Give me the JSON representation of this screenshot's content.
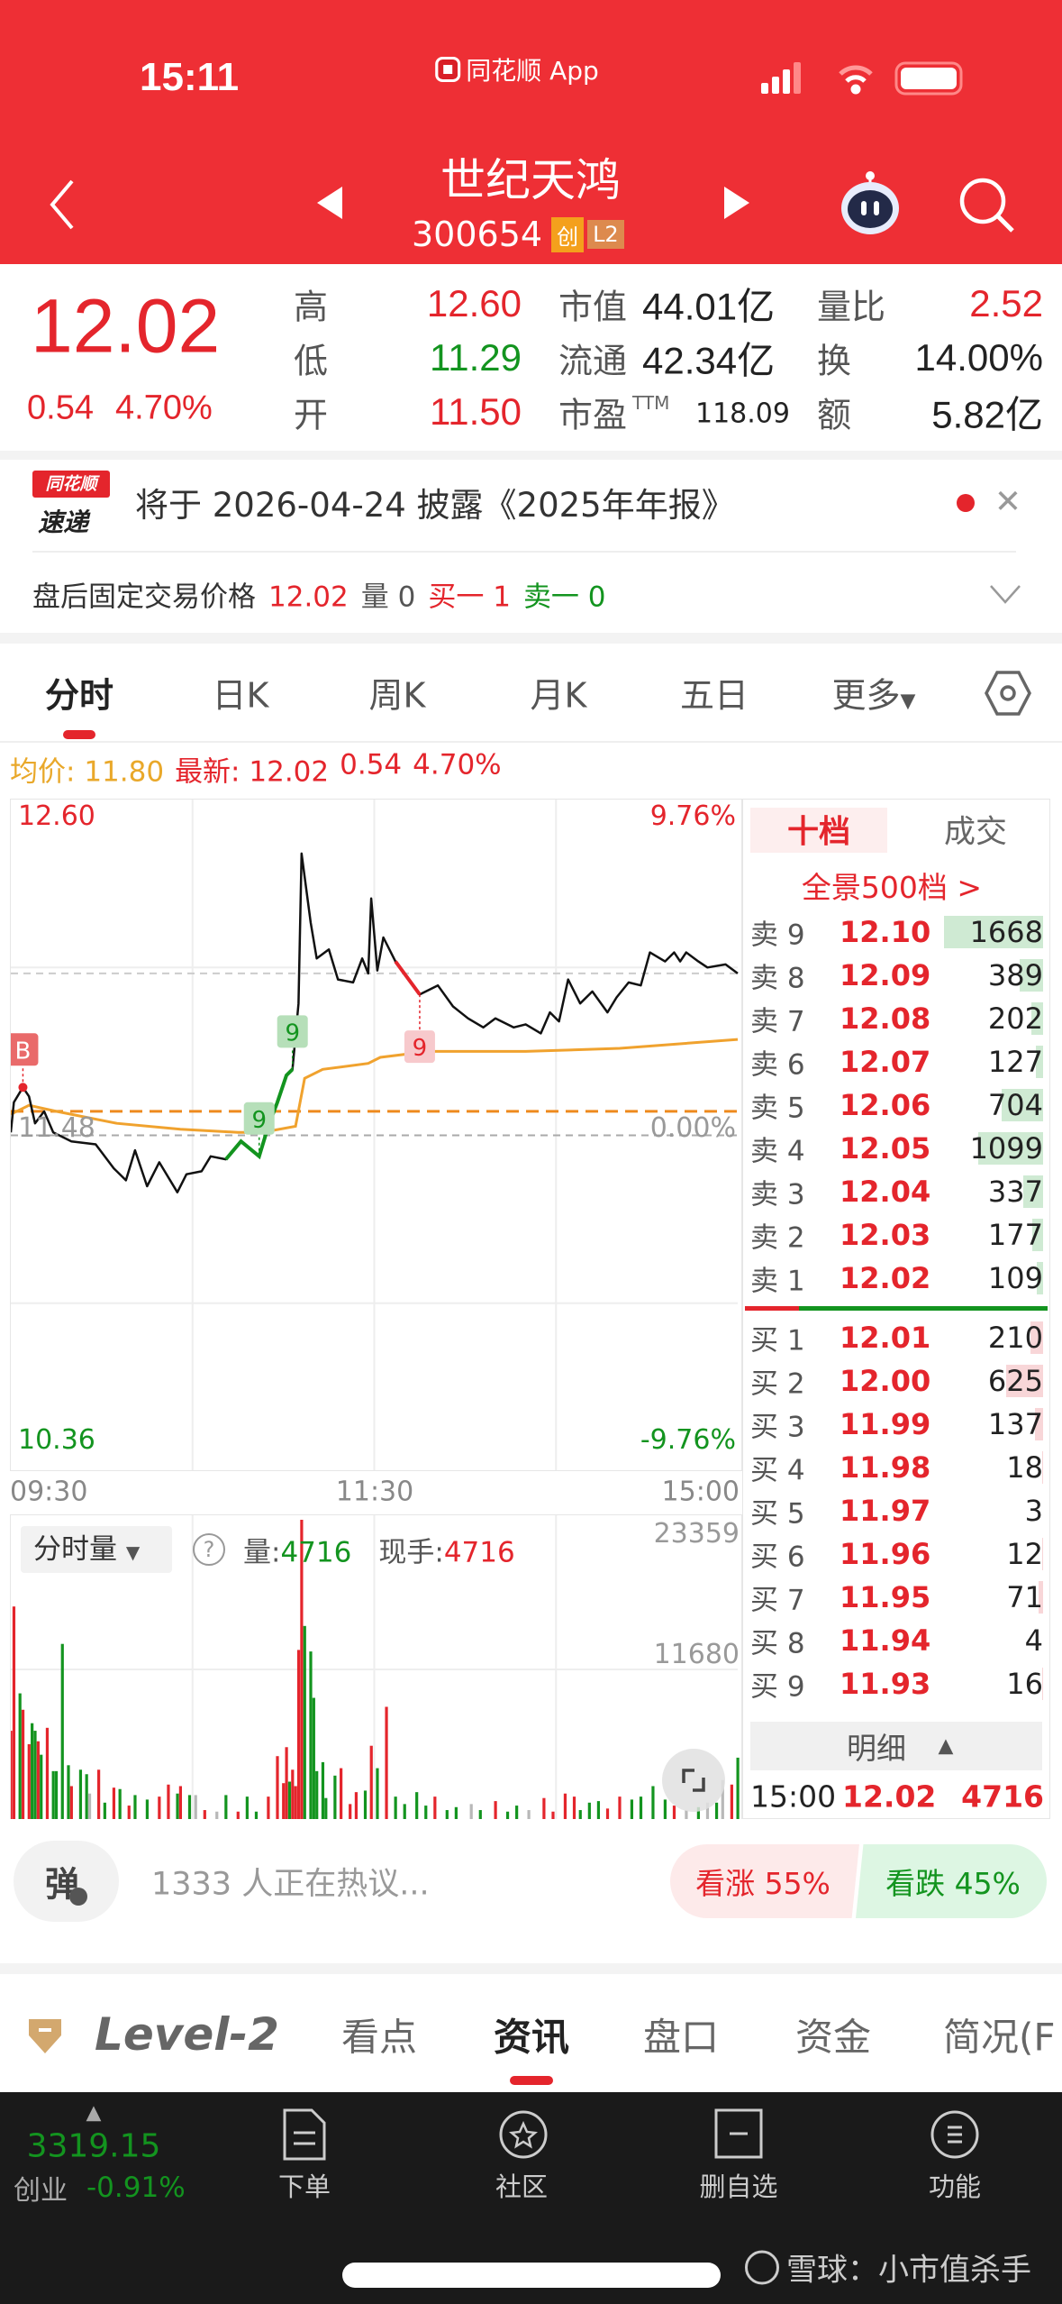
{
  "status_bar": {
    "time": "15:11",
    "app_label": "同花顺 App",
    "icons": [
      "signal-icon",
      "wifi-icon",
      "battery-icon"
    ]
  },
  "header": {
    "title": "世纪天鸿",
    "code": "300654",
    "badges": [
      "创",
      "L2"
    ],
    "icons": [
      "back-icon",
      "prev-stock-icon",
      "next-stock-icon",
      "robot-assistant-icon",
      "search-icon"
    ]
  },
  "quote": {
    "price": "12.02",
    "change": "0.54",
    "change_pct": "4.70%",
    "stats": [
      {
        "label": "高",
        "value": "12.60",
        "color": "red"
      },
      {
        "label": "低",
        "value": "11.29",
        "color": "green"
      },
      {
        "label": "开",
        "value": "11.50",
        "color": "red"
      }
    ],
    "stats2": [
      {
        "label": "市值",
        "value": "44.01亿"
      },
      {
        "label": "流通",
        "value": "42.34亿"
      },
      {
        "label": "市盈",
        "sup": "TTM",
        "value": "118.09"
      }
    ],
    "stats3": [
      {
        "label": "量比",
        "value": "2.52",
        "color": "red"
      },
      {
        "label": "换",
        "value": "14.00%",
        "color": "dark"
      },
      {
        "label": "额",
        "value": "5.82亿",
        "color": "dark"
      }
    ]
  },
  "notice": {
    "logo_top": "同花顺",
    "logo_bottom": "速递",
    "text": "将于 2026-04-24 披露《2025年年报》"
  },
  "after_hours": {
    "label": "盘后固定交易价格",
    "price": "12.02",
    "vol_label": "量",
    "vol": "0",
    "buy_label": "买一",
    "buy": "1",
    "sell_label": "卖一",
    "sell": "0"
  },
  "chart_tabs": {
    "items": [
      "分时",
      "日K",
      "周K",
      "月K",
      "五日",
      "更多"
    ],
    "active": 0
  },
  "avg_row": {
    "avg_label": "均价:",
    "avg": "11.80",
    "last_label": "最新:",
    "last": "12.02",
    "change": "0.54",
    "pct": "4.70%"
  },
  "colors": {
    "up": "#e4252c",
    "down": "#13941f",
    "flat": "#b8b8b8",
    "avg_line": "#f0a22e",
    "brand": "#ee2f35"
  },
  "chart_data": [
    {
      "type": "line",
      "y_tick_labels": {
        "top": "12.60",
        "mid": "11.48",
        "bottom": "10.36",
        "top_pct": "9.76%",
        "mid_pct": "0.00%",
        "bottom_pct": "-9.76%"
      },
      "ylim": [
        10.36,
        12.6
      ],
      "x_tick_labels": [
        "09:30",
        "11:30",
        "15:00"
      ],
      "prev_close": 11.48,
      "reference_line": 11.56,
      "current_price": 12.02,
      "series": [
        {
          "role": "price",
          "points": [
            [
              "09:30",
              11.49
            ],
            [
              "09:31",
              11.59
            ],
            [
              "09:34",
              11.64
            ],
            [
              "09:36",
              11.61
            ],
            [
              "09:38",
              11.52
            ],
            [
              "09:41",
              11.56
            ],
            [
              "09:44",
              11.49
            ],
            [
              "09:50",
              11.46
            ],
            [
              "09:58",
              11.45
            ],
            [
              "10:04",
              11.37
            ],
            [
              "10:08",
              11.33
            ],
            [
              "10:11",
              11.43
            ],
            [
              "10:15",
              11.31
            ],
            [
              "10:19",
              11.39
            ],
            [
              "10:25",
              11.29
            ],
            [
              "10:28",
              11.35
            ],
            [
              "10:33",
              11.36
            ],
            [
              "10:36",
              11.41
            ],
            [
              "10:41",
              11.4
            ],
            [
              "10:46",
              11.46
            ],
            [
              "10:52",
              11.41
            ],
            [
              "10:55",
              11.51
            ],
            [
              "10:58",
              11.59
            ],
            [
              "11:01",
              11.68
            ],
            [
              "11:03",
              11.7
            ],
            [
              "11:05",
              11.92
            ],
            [
              "11:06",
              12.42
            ],
            [
              "11:09",
              12.19
            ],
            [
              "11:11",
              12.07
            ],
            [
              "11:15",
              12.1
            ],
            [
              "11:18",
              12.0
            ],
            [
              "11:23",
              11.99
            ],
            [
              "11:26",
              12.07
            ],
            [
              "11:28",
              12.02
            ],
            [
              "11:29",
              12.27
            ],
            [
              "13:01",
              12.03
            ],
            [
              "13:03",
              12.14
            ],
            [
              "13:07",
              12.06
            ],
            [
              "13:15",
              11.95
            ],
            [
              "13:21",
              11.98
            ],
            [
              "13:26",
              11.91
            ],
            [
              "13:31",
              11.87
            ],
            [
              "13:36",
              11.84
            ],
            [
              "13:40",
              11.87
            ],
            [
              "13:46",
              11.84
            ],
            [
              "13:50",
              11.85
            ],
            [
              "13:55",
              11.82
            ],
            [
              "13:58",
              11.89
            ],
            [
              "14:01",
              11.86
            ],
            [
              "14:04",
              12.0
            ],
            [
              "14:08",
              11.92
            ],
            [
              "14:12",
              11.96
            ],
            [
              "14:17",
              11.89
            ],
            [
              "14:20",
              11.94
            ],
            [
              "14:24",
              11.99
            ],
            [
              "14:28",
              11.98
            ],
            [
              "14:31",
              12.09
            ],
            [
              "14:36",
              12.06
            ],
            [
              "14:39",
              12.09
            ],
            [
              "14:41",
              12.06
            ],
            [
              "14:43",
              12.09
            ],
            [
              "14:47",
              12.06
            ],
            [
              "14:50",
              12.04
            ],
            [
              "14:56",
              12.05
            ],
            [
              "15:00",
              12.02
            ]
          ]
        },
        {
          "role": "average",
          "points": [
            [
              "09:30",
              11.55
            ],
            [
              "09:36",
              11.58
            ],
            [
              "09:45",
              11.56
            ],
            [
              "10:05",
              11.52
            ],
            [
              "10:26",
              11.5
            ],
            [
              "10:45",
              11.49
            ],
            [
              "10:53",
              11.49
            ],
            [
              "11:04",
              11.51
            ],
            [
              "11:07",
              11.67
            ],
            [
              "11:13",
              11.7
            ],
            [
              "11:28",
              11.72
            ],
            [
              "13:02",
              11.74
            ],
            [
              "13:18",
              11.76
            ],
            [
              "13:50",
              11.76
            ],
            [
              "14:21",
              11.77
            ],
            [
              "15:00",
              11.8
            ]
          ]
        }
      ],
      "highlights": [
        {
          "from": "10:41",
          "to": "11:03",
          "color": "down"
        },
        {
          "from": "13:07",
          "to": "13:15",
          "color": "up"
        }
      ],
      "markers": [
        {
          "time": "09:34",
          "label": "B",
          "color": "up"
        },
        {
          "time": "10:52",
          "label": "9",
          "color": "down"
        },
        {
          "time": "11:03",
          "label": "9",
          "color": "down"
        },
        {
          "time": "13:15",
          "label": "9",
          "color": "up"
        }
      ]
    },
    {
      "type": "bar",
      "selector_label": "分时量",
      "vol_label": "量:",
      "vol": "4716",
      "hand_label": "现手:",
      "hand": "4716",
      "y_tick_labels": [
        "23359",
        "11680"
      ],
      "ylim": [
        0,
        23359
      ],
      "bars": [
        [
          "09:30",
          6890,
          "r"
        ],
        [
          "09:31",
          16590,
          "r"
        ],
        [
          "09:33",
          9810,
          "g"
        ],
        [
          "09:34",
          8530,
          "r"
        ],
        [
          "09:36",
          5840,
          "r"
        ],
        [
          "09:37",
          7480,
          "g"
        ],
        [
          "09:38",
          6890,
          "g"
        ],
        [
          "09:39",
          6070,
          "r"
        ],
        [
          "09:40",
          5020,
          "g"
        ],
        [
          "09:42",
          7120,
          "r"
        ],
        [
          "09:44",
          3740,
          "g"
        ],
        [
          "09:45",
          3740,
          "g"
        ],
        [
          "09:47",
          13670,
          "g"
        ],
        [
          "09:49",
          4200,
          "g"
        ],
        [
          "09:50",
          2570,
          "r"
        ],
        [
          "09:53",
          3850,
          "g"
        ],
        [
          "09:55",
          3500,
          "g"
        ],
        [
          "09:56",
          1990,
          "n"
        ],
        [
          "09:59",
          3850,
          "r"
        ],
        [
          "10:01",
          1280,
          "g"
        ],
        [
          "10:04",
          2450,
          "r"
        ],
        [
          "10:06",
          2340,
          "g"
        ],
        [
          "10:09",
          1050,
          "r"
        ],
        [
          "10:11",
          1870,
          "g"
        ],
        [
          "10:15",
          1520,
          "g"
        ],
        [
          "10:19",
          1750,
          "r"
        ],
        [
          "10:22",
          2690,
          "r"
        ],
        [
          "10:25",
          1990,
          "g"
        ],
        [
          "10:26",
          2570,
          "r"
        ],
        [
          "10:29",
          1870,
          "g"
        ],
        [
          "10:31",
          1870,
          "n"
        ],
        [
          "10:34",
          700,
          "r"
        ],
        [
          "10:38",
          580,
          "n"
        ],
        [
          "10:41",
          1870,
          "g"
        ],
        [
          "10:45",
          580,
          "r"
        ],
        [
          "10:48",
          1750,
          "g"
        ],
        [
          "10:51",
          580,
          "g"
        ],
        [
          "10:55",
          1750,
          "r"
        ],
        [
          "10:58",
          4910,
          "r"
        ],
        [
          "11:00",
          2800,
          "r"
        ],
        [
          "11:01",
          5610,
          "r"
        ],
        [
          "11:02",
          2920,
          "g"
        ],
        [
          "11:03",
          3850,
          "r"
        ],
        [
          "11:04",
          2570,
          "r"
        ],
        [
          "11:05",
          13200,
          "r"
        ],
        [
          "11:06",
          23359,
          "r"
        ],
        [
          "11:07",
          15070,
          "g"
        ],
        [
          "11:09",
          13080,
          "g"
        ],
        [
          "11:10",
          9460,
          "g"
        ],
        [
          "11:11",
          3740,
          "g"
        ],
        [
          "11:13",
          4440,
          "g"
        ],
        [
          "11:14",
          1640,
          "g"
        ],
        [
          "11:17",
          3390,
          "g"
        ],
        [
          "11:19",
          3970,
          "r"
        ],
        [
          "11:22",
          1170,
          "r"
        ],
        [
          "11:24",
          2100,
          "r"
        ],
        [
          "11:27",
          2220,
          "g"
        ],
        [
          "11:29",
          5720,
          "r"
        ],
        [
          "13:01",
          3970,
          "g"
        ],
        [
          "13:04",
          8760,
          "r"
        ],
        [
          "13:07",
          1750,
          "g"
        ],
        [
          "13:10",
          1170,
          "g"
        ],
        [
          "13:14",
          2100,
          "g"
        ],
        [
          "13:17",
          1050,
          "g"
        ],
        [
          "13:20",
          1750,
          "r"
        ],
        [
          "13:24",
          700,
          "g"
        ],
        [
          "13:27",
          930,
          "g"
        ],
        [
          "13:32",
          1170,
          "n"
        ],
        [
          "13:35",
          700,
          "g"
        ],
        [
          "13:40",
          1400,
          "r"
        ],
        [
          "13:44",
          580,
          "g"
        ],
        [
          "13:47",
          1050,
          "g"
        ],
        [
          "13:51",
          700,
          "n"
        ],
        [
          "13:56",
          1640,
          "r"
        ],
        [
          "13:59",
          580,
          "r"
        ],
        [
          "14:03",
          1990,
          "r"
        ],
        [
          "14:06",
          1750,
          "r"
        ],
        [
          "14:08",
          700,
          "g"
        ],
        [
          "14:11",
          1280,
          "g"
        ],
        [
          "14:14",
          1400,
          "g"
        ],
        [
          "14:17",
          820,
          "r"
        ],
        [
          "14:21",
          1750,
          "r"
        ],
        [
          "14:25",
          1520,
          "g"
        ],
        [
          "14:28",
          1750,
          "g"
        ],
        [
          "14:32",
          2570,
          "g"
        ],
        [
          "14:36",
          1520,
          "g"
        ],
        [
          "14:39",
          1050,
          "r"
        ],
        [
          "14:43",
          700,
          "n"
        ],
        [
          "14:47",
          930,
          "g"
        ],
        [
          "14:50",
          1280,
          "n"
        ],
        [
          "14:53",
          1280,
          "g"
        ],
        [
          "14:55",
          3040,
          "n"
        ],
        [
          "14:58",
          2690,
          "r"
        ],
        [
          "15:00",
          4790,
          "g"
        ]
      ]
    }
  ],
  "order_book": {
    "tabs": [
      "十档",
      "成交"
    ],
    "active_tab": 0,
    "panorama_link": "全景500档 >",
    "asks": [
      {
        "label": "卖 9",
        "price": "12.10",
        "qty": 1668
      },
      {
        "label": "卖 8",
        "price": "12.09",
        "qty": 389
      },
      {
        "label": "卖 7",
        "price": "12.08",
        "qty": 202
      },
      {
        "label": "卖 6",
        "price": "12.07",
        "qty": 127
      },
      {
        "label": "卖 5",
        "price": "12.06",
        "qty": 704
      },
      {
        "label": "卖 4",
        "price": "12.05",
        "qty": 1099
      },
      {
        "label": "卖 3",
        "price": "12.04",
        "qty": 337
      },
      {
        "label": "卖 2",
        "price": "12.03",
        "qty": 177
      },
      {
        "label": "卖 1",
        "price": "12.02",
        "qty": 109
      }
    ],
    "bids": [
      {
        "label": "买 1",
        "price": "12.01",
        "qty": 210
      },
      {
        "label": "买 2",
        "price": "12.00",
        "qty": 625
      },
      {
        "label": "买 3",
        "price": "11.99",
        "qty": 137
      },
      {
        "label": "买 4",
        "price": "11.98",
        "qty": 18
      },
      {
        "label": "买 5",
        "price": "11.97",
        "qty": 3
      },
      {
        "label": "买 6",
        "price": "11.96",
        "qty": 12
      },
      {
        "label": "买 7",
        "price": "11.95",
        "qty": 71
      },
      {
        "label": "买 8",
        "price": "11.94",
        "qty": 4
      },
      {
        "label": "买 9",
        "price": "11.93",
        "qty": 16
      }
    ],
    "detail_label": "明细",
    "last_trade": {
      "time": "15:00",
      "price": "12.02",
      "qty": "4716"
    }
  },
  "comment_bar": {
    "danmu_label": "弹",
    "text": "1333 人正在热议...",
    "bull": "看涨 55%",
    "bear": "看跌 45%",
    "bull_pct": 55,
    "bear_pct": 45
  },
  "info_tabs": {
    "level2": "Level-2",
    "items": [
      "看点",
      "资讯",
      "盘口",
      "资金",
      "简况(F"
    ],
    "active": 1
  },
  "bottom_nav": {
    "index": {
      "value": "3319.15",
      "name": "创业",
      "pct": "-0.91%"
    },
    "items": [
      {
        "label": "下单",
        "icon": "order-icon"
      },
      {
        "label": "社区",
        "icon": "community-icon"
      },
      {
        "label": "删自选",
        "icon": "remove-watchlist-icon"
      },
      {
        "label": "功能",
        "icon": "menu-icon"
      }
    ]
  },
  "watermark": "雪球：小市值杀手"
}
